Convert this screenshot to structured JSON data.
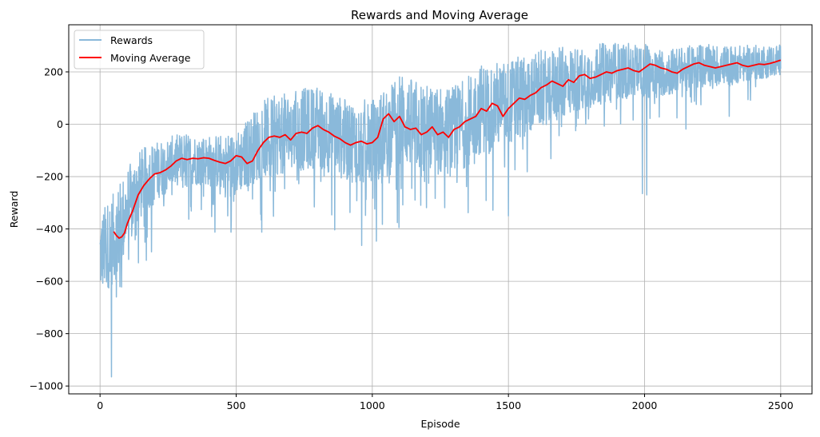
{
  "chart_data": {
    "type": "line",
    "title": "Rewards and Moving Average",
    "xlabel": "Episode",
    "ylabel": "Reward",
    "xlim": [
      -115,
      2615
    ],
    "ylim": [
      -1030,
      380
    ],
    "xticks": [
      0,
      500,
      1000,
      1500,
      2000,
      2500
    ],
    "yticks": [
      -1000,
      -800,
      -600,
      -400,
      -200,
      0,
      200
    ],
    "ytick_labels": [
      "−1000",
      "−800",
      "−600",
      "−400",
      "−200",
      "0",
      "200"
    ],
    "grid": true,
    "legend_position": "top-left",
    "series": [
      {
        "name": "Rewards",
        "color": "#8ab9da",
        "description": "per-episode reward, highly noisy",
        "trend_x": [
          0,
          20,
          40,
          60,
          100,
          150,
          200,
          300,
          400,
          500,
          600,
          700,
          800,
          900,
          1000,
          1100,
          1200,
          1300,
          1400,
          1500,
          1600,
          1700,
          1800,
          1900,
          2000,
          2100,
          2200,
          2300,
          2400,
          2500
        ],
        "trend_y": [
          -500,
          -470,
          -450,
          -420,
          -330,
          -230,
          -180,
          -130,
          -140,
          -150,
          -55,
          -30,
          -10,
          -60,
          -70,
          20,
          -20,
          -30,
          60,
          80,
          130,
          160,
          180,
          210,
          205,
          200,
          225,
          225,
          235,
          245
        ],
        "noise_amplitude": [
          200,
          220,
          230,
          230,
          220,
          180,
          150,
          130,
          130,
          160,
          200,
          210,
          210,
          210,
          220,
          230,
          230,
          230,
          230,
          220,
          200,
          180,
          160,
          150,
          140,
          120,
          110,
          100,
          90,
          80
        ],
        "outliers": [
          {
            "x": 42,
            "y": -965
          },
          {
            "x": 60,
            "y": -660
          },
          {
            "x": 30,
            "y": -620
          },
          {
            "x": 1500,
            "y": -350
          },
          {
            "x": 1992,
            "y": -265
          },
          {
            "x": 2008,
            "y": -270
          }
        ],
        "y_max": 310
      },
      {
        "name": "Moving Average",
        "color": "#ff0000",
        "x": [
          50,
          60,
          70,
          80,
          90,
          100,
          120,
          140,
          160,
          180,
          200,
          220,
          240,
          260,
          280,
          300,
          320,
          340,
          360,
          380,
          400,
          420,
          440,
          460,
          480,
          500,
          520,
          540,
          560,
          580,
          600,
          620,
          640,
          660,
          680,
          700,
          720,
          740,
          760,
          780,
          800,
          820,
          840,
          860,
          880,
          900,
          920,
          940,
          960,
          980,
          1000,
          1020,
          1040,
          1060,
          1080,
          1100,
          1120,
          1140,
          1160,
          1180,
          1200,
          1220,
          1240,
          1260,
          1280,
          1300,
          1320,
          1340,
          1360,
          1380,
          1400,
          1420,
          1440,
          1460,
          1480,
          1500,
          1520,
          1540,
          1560,
          1580,
          1600,
          1620,
          1640,
          1660,
          1680,
          1700,
          1720,
          1740,
          1760,
          1780,
          1800,
          1820,
          1840,
          1860,
          1880,
          1900,
          1920,
          1940,
          1960,
          1980,
          2000,
          2020,
          2040,
          2060,
          2080,
          2100,
          2120,
          2140,
          2160,
          2180,
          2200,
          2220,
          2240,
          2260,
          2280,
          2300,
          2320,
          2340,
          2360,
          2380,
          2400,
          2420,
          2440,
          2460,
          2480,
          2500
        ],
        "y": [
          -410,
          -425,
          -435,
          -430,
          -415,
          -380,
          -330,
          -270,
          -235,
          -210,
          -190,
          -185,
          -175,
          -160,
          -140,
          -130,
          -135,
          -130,
          -132,
          -128,
          -130,
          -138,
          -145,
          -150,
          -140,
          -120,
          -125,
          -150,
          -140,
          -100,
          -70,
          -50,
          -45,
          -50,
          -40,
          -60,
          -35,
          -30,
          -35,
          -15,
          -5,
          -20,
          -30,
          -45,
          -55,
          -70,
          -80,
          -70,
          -65,
          -75,
          -70,
          -50,
          20,
          40,
          10,
          30,
          -10,
          -20,
          -15,
          -40,
          -30,
          -10,
          -40,
          -30,
          -50,
          -20,
          -10,
          10,
          20,
          30,
          60,
          50,
          80,
          70,
          30,
          60,
          80,
          100,
          95,
          110,
          120,
          140,
          150,
          165,
          155,
          145,
          170,
          160,
          185,
          190,
          175,
          180,
          190,
          200,
          195,
          205,
          210,
          215,
          205,
          200,
          215,
          230,
          225,
          215,
          210,
          200,
          195,
          210,
          220,
          230,
          235,
          225,
          220,
          215,
          220,
          225,
          230,
          235,
          225,
          220,
          225,
          230,
          228,
          232,
          238,
          245
        ]
      }
    ]
  }
}
